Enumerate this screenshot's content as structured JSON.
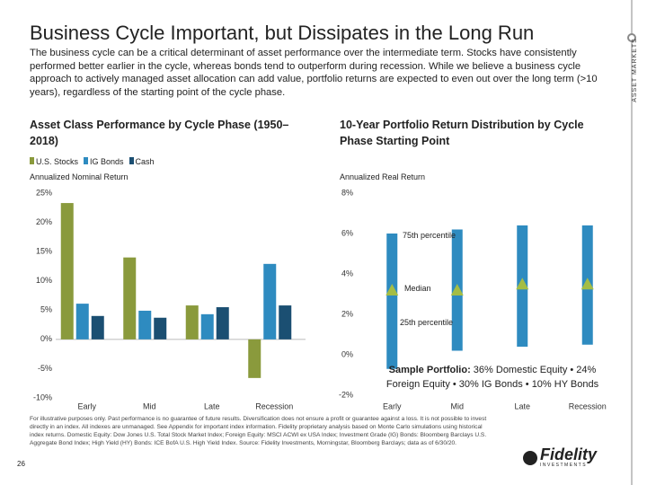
{
  "header": {
    "title": "Business Cycle Important, but Dissipates in the Long Run",
    "description": "The business cycle can be a critical determinant of asset performance over the intermediate term. Stocks have consistently performed better earlier in the cycle, whereas bonds tend to outperform during recession. While we believe a business cycle approach to actively managed asset allocation can add value, portfolio returns are expected to even out over the long term (>10 years), regardless of the starting point of the cycle phase.",
    "section": "ASSET MARKETS"
  },
  "chart_data": [
    {
      "type": "bar",
      "title": "Asset Class Performance by Cycle Phase (1950–2018)",
      "y_label": "Annualized Nominal Return",
      "categories": [
        "Early",
        "Mid",
        "Late",
        "Recession"
      ],
      "series": [
        {
          "name": "U.S. Stocks",
          "color": "#8a9a3c",
          "values": [
            23.3,
            14,
            5.8,
            -6.6
          ]
        },
        {
          "name": "IG Bonds",
          "color": "#2e8bc0",
          "values": [
            6.1,
            4.9,
            4.3,
            12.9
          ]
        },
        {
          "name": "Cash",
          "color": "#1b4f72",
          "values": [
            4.0,
            3.7,
            5.5,
            5.8
          ]
        }
      ],
      "ylim": [
        -10,
        25
      ],
      "yticks": [
        {
          "value": -10,
          "label": "-10%"
        },
        {
          "value": -5,
          "label": "-5%"
        },
        {
          "value": 0,
          "label": "0%"
        },
        {
          "value": 5,
          "label": "5%"
        },
        {
          "value": 10,
          "label": "10%"
        },
        {
          "value": 15,
          "label": "15%"
        },
        {
          "value": 20,
          "label": "20%"
        },
        {
          "value": 25,
          "label": "25%"
        }
      ],
      "grid": false
    },
    {
      "type": "range",
      "title": "10-Year Portfolio Return Distribution by Cycle Phase Starting Point",
      "y_label": "Annualized Real Return",
      "categories": [
        "Early",
        "Mid",
        "Late",
        "Recession"
      ],
      "high": [
        6.0,
        6.2,
        6.4,
        6.4
      ],
      "low": [
        -0.7,
        0.2,
        0.4,
        0.5
      ],
      "median": [
        3.2,
        3.2,
        3.5,
        3.5
      ],
      "color": "#2e8bc0",
      "median_color": "#a4bd45",
      "ylim": [
        -2,
        8
      ],
      "yticks": [
        {
          "value": -2,
          "label": "-2%"
        },
        {
          "value": 0,
          "label": "0%"
        },
        {
          "value": 2,
          "label": "2%"
        },
        {
          "value": 4,
          "label": "4%"
        },
        {
          "value": 6,
          "label": "6%"
        },
        {
          "value": 8,
          "label": "8%"
        }
      ],
      "annotations": {
        "high": "75th percentile",
        "median": "Median",
        "low": "25th percentile"
      },
      "note_bold": "Sample Portfolio:",
      "note": "36% Domestic Equity • 24% Foreign Equity • 30% IG Bonds • 10% HY Bonds"
    }
  ],
  "footer": {
    "footnote": "For illustrative purposes only. Past performance is no guarantee of future results. Diversification does not ensure a profit or guarantee against a loss. It is not possible to invest directly in an index. All indexes are unmanaged. See Appendix for important index information. Fidelity proprietary analysis based on Monte Carlo simulations using historical index returns. Domestic Equity: Dow Jones U.S. Total Stock Market Index; Foreign Equity: MSCI ACWI ex USA Index; Investment Grade (IG) Bonds: Bloomberg Barclays U.S. Aggregate Bond Index; High Yield (HY) Bonds: ICE BofA U.S. High Yield Index. Source: Fidelity Investments, Morningstar, Bloomberg Barclays; data as of 6/30/20.",
    "page": "26",
    "logo": "Fidelity",
    "logo_sub": "INVESTMENTS"
  }
}
